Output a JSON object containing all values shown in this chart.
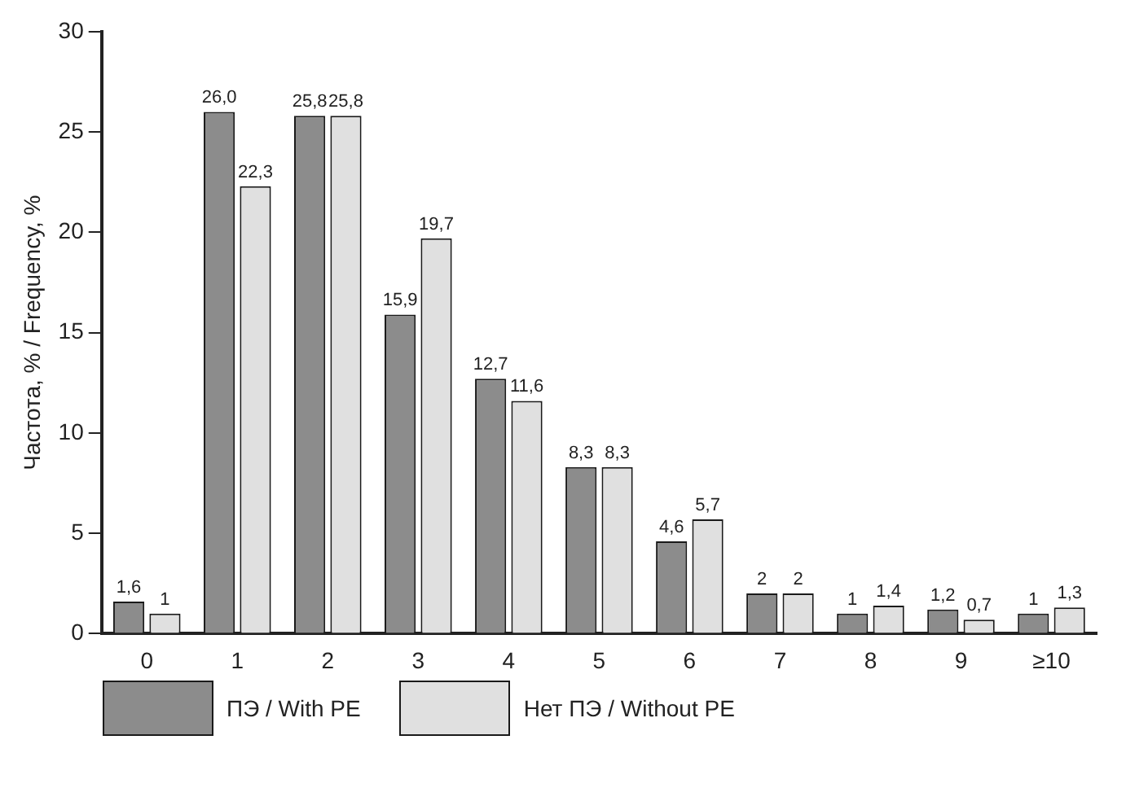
{
  "chart_data": {
    "type": "bar",
    "ylabel": "Частота, % / Frequency, %",
    "categories": [
      "0",
      "1",
      "2",
      "3",
      "4",
      "5",
      "6",
      "7",
      "8",
      "9",
      "≥10"
    ],
    "ylim": [
      0,
      30
    ],
    "yticks": [
      0,
      5,
      10,
      15,
      20,
      25,
      30
    ],
    "grid": false,
    "legend": "bottom",
    "series": [
      {
        "name": "ПЭ / With PE",
        "color": "#8c8c8c",
        "values": [
          1.6,
          26.0,
          25.8,
          15.9,
          12.7,
          8.3,
          4.6,
          2,
          1,
          1.2,
          1
        ],
        "value_labels": [
          "1,6",
          "26,0",
          "25,8",
          "15,9",
          "12,7",
          "8,3",
          "4,6",
          "2",
          "1",
          "1,2",
          "1"
        ]
      },
      {
        "name": "Нет ПЭ / Without PE",
        "color": "#e0e0e0",
        "values": [
          1,
          22.3,
          25.8,
          19.7,
          11.6,
          8.3,
          5.7,
          2,
          1.4,
          0.7,
          1.3
        ],
        "value_labels": [
          "1",
          "22,3",
          "25,8",
          "19,7",
          "11,6",
          "8,3",
          "5,7",
          "2",
          "1,4",
          "0,7",
          "1,3"
        ]
      }
    ]
  }
}
